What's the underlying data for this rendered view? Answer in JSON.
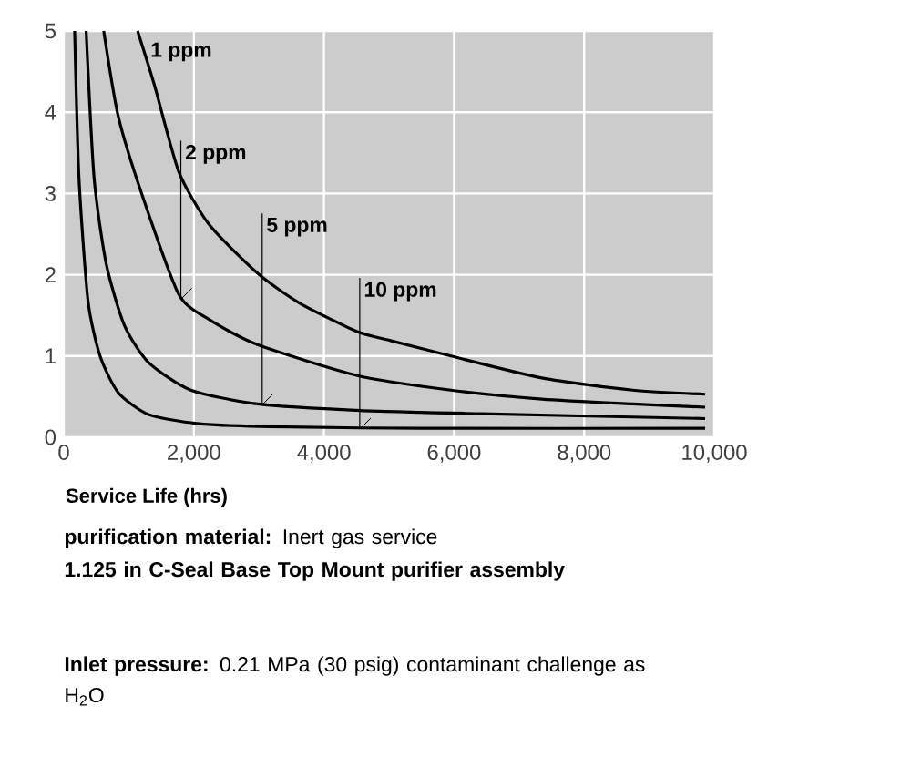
{
  "chart_data": {
    "type": "line",
    "xlabel": "Service Life (hrs)",
    "xlim": [
      0,
      10000
    ],
    "ylim": [
      0,
      5
    ],
    "xticks": [
      0,
      {
        "value": 2000,
        "label": "2,000"
      },
      {
        "value": 4000,
        "label": "4,000"
      },
      {
        "value": 6000,
        "label": "6,000"
      },
      {
        "value": 8000,
        "label": "8,000"
      },
      {
        "value": 10000,
        "label": "10,000"
      }
    ],
    "yticks": [
      0,
      1,
      2,
      3,
      4,
      5
    ],
    "grid": true,
    "marker": "none",
    "line_style": "solid",
    "series": [
      {
        "color": "#000000",
        "x": [
          1135,
          1395,
          1767,
          2233,
          2977,
          3628,
          4512,
          5023,
          5953,
          7349,
          8744,
          9860
        ],
        "values": [
          5,
          4.33,
          3.27,
          2.62,
          2.02,
          1.65,
          1.3,
          1.19,
          1.0,
          0.73,
          0.58,
          0.53
        ]
      },
      {
        "color": "#000000",
        "x": [
          614,
          837,
          1209,
          1767,
          2233,
          2977,
          4512,
          5953,
          7349,
          8744,
          9860
        ],
        "values": [
          5,
          3.95,
          2.97,
          1.76,
          1.45,
          1.14,
          0.76,
          0.58,
          0.47,
          0.41,
          0.37
        ]
      },
      {
        "color": "#000000",
        "x": [
          344,
          465,
          651,
          930,
          1302,
          1953,
          2977,
          4558,
          6419,
          9860
        ],
        "values": [
          5,
          3.2,
          2.14,
          1.38,
          0.92,
          0.58,
          0.41,
          0.33,
          0.29,
          0.23
        ]
      },
      {
        "color": "#000000",
        "x": [
          167,
          233,
          372,
          558,
          837,
          1302,
          2047,
          3163,
          5488,
          9860
        ],
        "values": [
          5,
          3.2,
          1.68,
          1.0,
          0.55,
          0.28,
          0.17,
          0.13,
          0.11,
          0.11
        ]
      }
    ],
    "annotations": [
      {
        "text": "1 ppm",
        "x": 1300,
        "y": 4.6
      },
      {
        "text": "2 ppm",
        "x": 1800,
        "y": 1.7
      },
      {
        "text": "5 ppm",
        "x": 3050,
        "y": 0.4
      },
      {
        "text": "10 ppm",
        "x": 4550,
        "y": 0.1
      },
      "**purification material:** Inert gas service",
      "**1.125 in C-Seal Base Top Mount purifier assembly**",
      "**Inlet pressure:** 0.21 MPa (30 psig) contaminant challenge as H$_{2}$O"
    ]
  }
}
